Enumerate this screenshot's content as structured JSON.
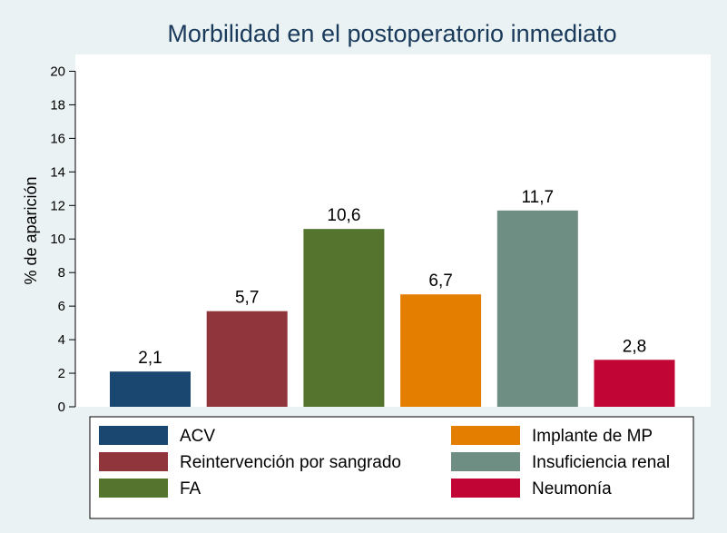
{
  "chart_data": {
    "type": "bar",
    "title": "Morbilidad en el postoperatorio inmediato",
    "ylabel": "% de aparición",
    "xlabel": "",
    "ylim": [
      0,
      21
    ],
    "yticks": [
      0,
      2,
      4,
      6,
      8,
      10,
      12,
      14,
      16,
      18,
      20
    ],
    "grid": false,
    "legend_position": "bottom",
    "series": [
      {
        "name": "ACV",
        "value": 2.1,
        "label": "2,1",
        "color": "#1a476f"
      },
      {
        "name": "Reintervención por sangrado",
        "value": 5.7,
        "label": "5,7",
        "color": "#90353b"
      },
      {
        "name": "FA",
        "value": 10.6,
        "label": "10,6",
        "color": "#55752f"
      },
      {
        "name": "Implante de MP",
        "value": 6.7,
        "label": "6,7",
        "color": "#e37e00"
      },
      {
        "name": "Insuficiencia renal",
        "value": 11.7,
        "label": "11,7",
        "color": "#6e8e84"
      },
      {
        "name": "Neumonía",
        "value": 2.8,
        "label": "2,8",
        "color": "#c10534"
      }
    ]
  }
}
